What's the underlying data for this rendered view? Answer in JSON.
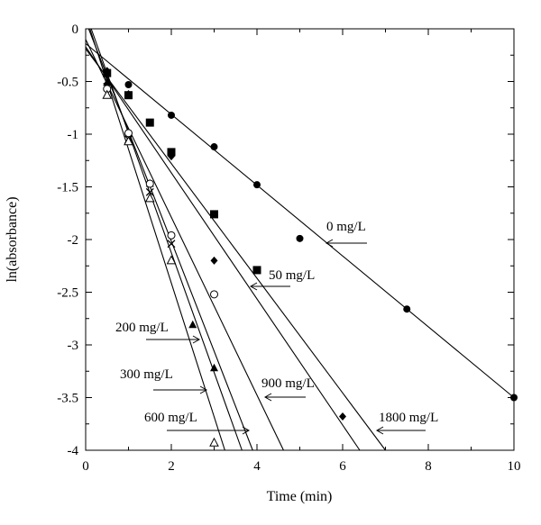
{
  "chart_data": {
    "type": "scatter",
    "title": "",
    "xlabel": "Time (min)",
    "ylabel": "ln(absorbance)",
    "xlim": [
      0,
      10
    ],
    "ylim": [
      -4,
      0
    ],
    "xticks": [
      "0",
      "2",
      "4",
      "6",
      "8",
      "10"
    ],
    "yticks": [
      "0",
      "-0.5",
      "-1",
      "-1.5",
      "-2",
      "-2.5",
      "-3",
      "-3.5",
      "-4"
    ],
    "grid": false,
    "series": [
      {
        "name": "0 mg/L",
        "marker": "filled-circle",
        "points": [
          [
            0.5,
            -0.42
          ],
          [
            1,
            -0.53
          ],
          [
            2,
            -0.82
          ],
          [
            3,
            -1.12
          ],
          [
            4,
            -1.48
          ],
          [
            5,
            -1.99
          ],
          [
            7.5,
            -2.66
          ],
          [
            10,
            -3.5
          ]
        ],
        "fit": [
          [
            0,
            -0.14
          ],
          [
            10,
            -3.5
          ]
        ]
      },
      {
        "name": "50 mg/L",
        "marker": "filled-square",
        "points": [
          [
            0.5,
            -0.42
          ],
          [
            1,
            -0.63
          ],
          [
            1.5,
            -0.89
          ],
          [
            2,
            -1.17
          ],
          [
            3,
            -1.76
          ],
          [
            4,
            -2.29
          ]
        ],
        "fit": [
          [
            0,
            -0.1
          ],
          [
            4.62,
            -4.0
          ]
        ]
      },
      {
        "name": "1800 mg/L",
        "marker": "filled-diamond",
        "points": [
          [
            0.5,
            -0.4
          ],
          [
            1,
            -0.62
          ],
          [
            2,
            -1.21
          ],
          [
            3,
            -2.2
          ],
          [
            6,
            -3.68
          ]
        ],
        "fit": [
          [
            0,
            -0.17
          ],
          [
            6.4,
            -4.0
          ]
        ]
      },
      {
        "name": "900 mg/L",
        "marker": "cross",
        "points": [
          [
            0.5,
            -0.55
          ],
          [
            1,
            -1.05
          ],
          [
            1.5,
            -1.55
          ],
          [
            2,
            -2.04
          ]
        ],
        "fit": [
          [
            0,
            -0.19
          ],
          [
            7.0,
            -4.0
          ]
        ]
      },
      {
        "name": "200 mg/L",
        "marker": "filled-triangle",
        "points": [
          [
            0.5,
            -0.51
          ],
          [
            1,
            -1.06
          ],
          [
            1.5,
            -1.47
          ],
          [
            2.5,
            -2.81
          ],
          [
            3,
            -3.22
          ]
        ],
        "fit": [
          [
            0.13,
            0
          ],
          [
            3.65,
            -4.0
          ]
        ]
      },
      {
        "name": "300 mg/L",
        "marker": "open-circle",
        "points": [
          [
            0.5,
            -0.57
          ],
          [
            1,
            -0.99
          ],
          [
            1.5,
            -1.47
          ],
          [
            2,
            -1.96
          ],
          [
            3,
            -2.52
          ]
        ],
        "fit": [
          [
            0.07,
            0
          ],
          [
            3.9,
            -4.0
          ]
        ]
      },
      {
        "name": "600 mg/L",
        "marker": "open-triangle",
        "points": [
          [
            0.5,
            -0.63
          ],
          [
            1,
            -1.07
          ],
          [
            1.5,
            -1.61
          ],
          [
            2,
            -2.2
          ],
          [
            3,
            -3.93
          ]
        ],
        "fit": [
          [
            0.1,
            0
          ],
          [
            3.25,
            -4.0
          ]
        ]
      }
    ],
    "annotations": [
      {
        "text": "0 mg/L",
        "arrow_to": [
          5.6,
          -2.03
        ]
      },
      {
        "text": "50 mg/L",
        "arrow_to": [
          3.85,
          -2.43
        ]
      },
      {
        "text": "200 mg/L",
        "arrow_to": [
          2.65,
          -2.9
        ]
      },
      {
        "text": "300 mg/L",
        "arrow_to": [
          2.85,
          -3.38
        ]
      },
      {
        "text": "900 mg/L",
        "arrow_to": [
          4.15,
          -3.48
        ]
      },
      {
        "text": "600 mg/L",
        "arrow_to": [
          3.85,
          -3.78
        ]
      },
      {
        "text": "1800 mg/L",
        "arrow_to": [
          6.75,
          -3.78
        ]
      }
    ]
  }
}
